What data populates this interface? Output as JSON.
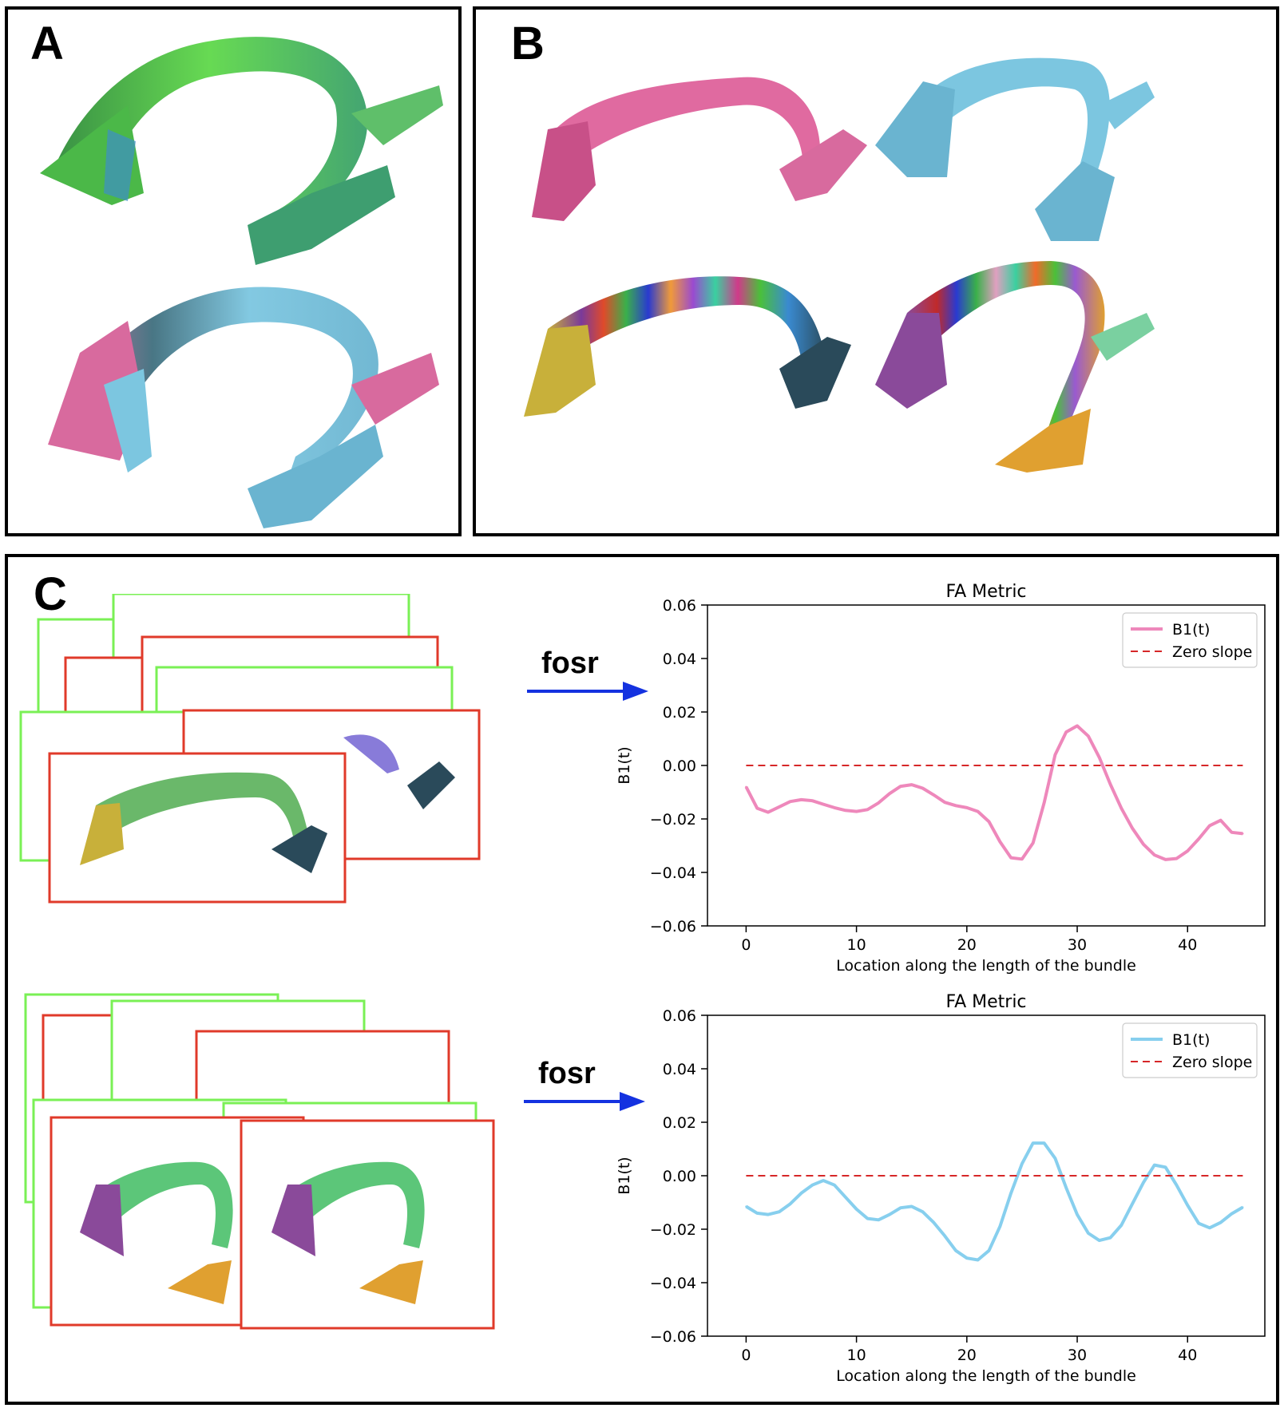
{
  "panels": {
    "a_label": "A",
    "b_label": "B",
    "c_label": "C"
  },
  "arrows": {
    "top_label": "fosr",
    "bottom_label": "fosr"
  },
  "colors": {
    "green_bundle": "#5fd84a",
    "pink_bundle": "#e06aa0",
    "blue_bundle": "#7cc6e0",
    "frame_green": "#7af055",
    "frame_red": "#e03a2a",
    "arrow": "#1432e0"
  },
  "chart_data": [
    {
      "type": "line",
      "title": "FA Metric",
      "xlabel": "Location along the length of the bundle",
      "ylabel": "B1(t)",
      "xlim": [
        -3.5,
        47
      ],
      "ylim": [
        -0.06,
        0.06
      ],
      "xticks": [
        0,
        10,
        20,
        30,
        40
      ],
      "xtick_labels": [
        "0",
        "10",
        "20",
        "30",
        "40"
      ],
      "yticks": [
        -0.06,
        -0.04,
        -0.02,
        0.0,
        0.02,
        0.04,
        0.06
      ],
      "ytick_labels": [
        "−0.06",
        "−0.04",
        "−0.02",
        "0.00",
        "0.02",
        "0.04",
        "0.06"
      ],
      "legend_location": "top-right",
      "series": [
        {
          "name": "B1(t)",
          "color": "#ee88bb",
          "style": "solid",
          "x": [
            0,
            1,
            2,
            3,
            4,
            5,
            6,
            7,
            8,
            9,
            10,
            11,
            12,
            13,
            14,
            15,
            16,
            17,
            18,
            19,
            20,
            21,
            22,
            23,
            24,
            25,
            26,
            27,
            28,
            29,
            30,
            31,
            32,
            33,
            34,
            35,
            36,
            37,
            38,
            39,
            40,
            41,
            42,
            43,
            44,
            45
          ],
          "values": [
            -0.008,
            -0.016,
            -0.0175,
            -0.0155,
            -0.0135,
            -0.0128,
            -0.0132,
            -0.0145,
            -0.0158,
            -0.0168,
            -0.0172,
            -0.0165,
            -0.014,
            -0.0105,
            -0.0078,
            -0.0072,
            -0.0085,
            -0.011,
            -0.0138,
            -0.015,
            -0.0158,
            -0.0172,
            -0.021,
            -0.0285,
            -0.0345,
            -0.035,
            -0.029,
            -0.014,
            0.004,
            0.0125,
            0.0148,
            0.011,
            0.003,
            -0.007,
            -0.016,
            -0.0235,
            -0.0295,
            -0.0335,
            -0.0352,
            -0.0348,
            -0.032,
            -0.0275,
            -0.0225,
            -0.0205,
            -0.025,
            -0.0255
          ]
        },
        {
          "name": "Zero slope",
          "color": "#d62728",
          "style": "dashed",
          "x": [
            0,
            45
          ],
          "values": [
            0,
            0
          ]
        }
      ]
    },
    {
      "type": "line",
      "title": "FA Metric",
      "xlabel": "Location along the length of the bundle",
      "ylabel": "B1(t)",
      "xlim": [
        -3.5,
        47
      ],
      "ylim": [
        -0.06,
        0.06
      ],
      "xticks": [
        0,
        10,
        20,
        30,
        40
      ],
      "xtick_labels": [
        "0",
        "10",
        "20",
        "30",
        "40"
      ],
      "yticks": [
        -0.06,
        -0.04,
        -0.02,
        0.0,
        0.02,
        0.04,
        0.06
      ],
      "ytick_labels": [
        "−0.06",
        "−0.04",
        "−0.02",
        "0.00",
        "0.02",
        "0.04",
        "0.06"
      ],
      "legend_location": "top-right",
      "series": [
        {
          "name": "B1(t)",
          "color": "#87cfee",
          "style": "solid",
          "x": [
            0,
            1,
            2,
            3,
            4,
            5,
            6,
            7,
            8,
            9,
            10,
            11,
            12,
            13,
            14,
            15,
            16,
            17,
            18,
            19,
            20,
            21,
            22,
            23,
            24,
            25,
            26,
            27,
            28,
            29,
            30,
            31,
            32,
            33,
            34,
            35,
            36,
            37,
            38,
            39,
            40,
            41,
            42,
            43,
            44,
            45
          ],
          "values": [
            -0.0115,
            -0.014,
            -0.0145,
            -0.0135,
            -0.0105,
            -0.0065,
            -0.0035,
            -0.0018,
            -0.0035,
            -0.008,
            -0.0125,
            -0.016,
            -0.0165,
            -0.0145,
            -0.012,
            -0.0115,
            -0.0135,
            -0.0175,
            -0.0225,
            -0.028,
            -0.0308,
            -0.0315,
            -0.028,
            -0.019,
            -0.0065,
            0.0045,
            0.0122,
            0.0122,
            0.0065,
            -0.0045,
            -0.0145,
            -0.0215,
            -0.0242,
            -0.0232,
            -0.0185,
            -0.0105,
            -0.0025,
            0.004,
            0.0032,
            -0.0035,
            -0.011,
            -0.0178,
            -0.0195,
            -0.0175,
            -0.0142,
            -0.0118
          ]
        },
        {
          "name": "Zero slope",
          "color": "#d62728",
          "style": "dashed",
          "x": [
            0,
            45
          ],
          "values": [
            0,
            0
          ]
        }
      ]
    }
  ]
}
